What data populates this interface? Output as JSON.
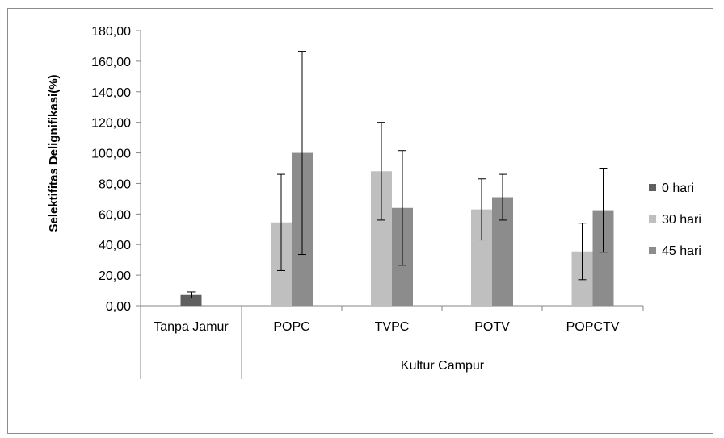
{
  "chart_data": {
    "type": "bar",
    "ylabel": "Selektifitas Delignifikasi(%)",
    "ylim": [
      0,
      180
    ],
    "yticks": [
      "0,00",
      "20,00",
      "40,00",
      "60,00",
      "80,00",
      "100,00",
      "120,00",
      "140,00",
      "160,00",
      "180,00"
    ],
    "group_labels": [
      "Kultur Campur"
    ],
    "categories": [
      "Tanpa Jamur",
      "POPC",
      "TVPC",
      "POTV",
      "POPCTV"
    ],
    "legend_position": "right",
    "grid": false,
    "series": [
      {
        "name": "0 hari",
        "color": "#5f5f5f",
        "values": [
          7.0,
          null,
          null,
          null,
          null
        ],
        "errors": [
          2.0,
          null,
          null,
          null,
          null
        ]
      },
      {
        "name": "30 hari",
        "color": "#bfbfbf",
        "values": [
          null,
          54.5,
          88.0,
          63.0,
          35.5
        ],
        "errors": [
          null,
          31.5,
          32.0,
          20.0,
          18.5
        ]
      },
      {
        "name": "45 hari",
        "color": "#8c8c8c",
        "values": [
          null,
          100.0,
          64.0,
          71.0,
          62.5
        ],
        "errors": [
          null,
          66.5,
          37.5,
          15.0,
          27.5
        ]
      }
    ]
  }
}
